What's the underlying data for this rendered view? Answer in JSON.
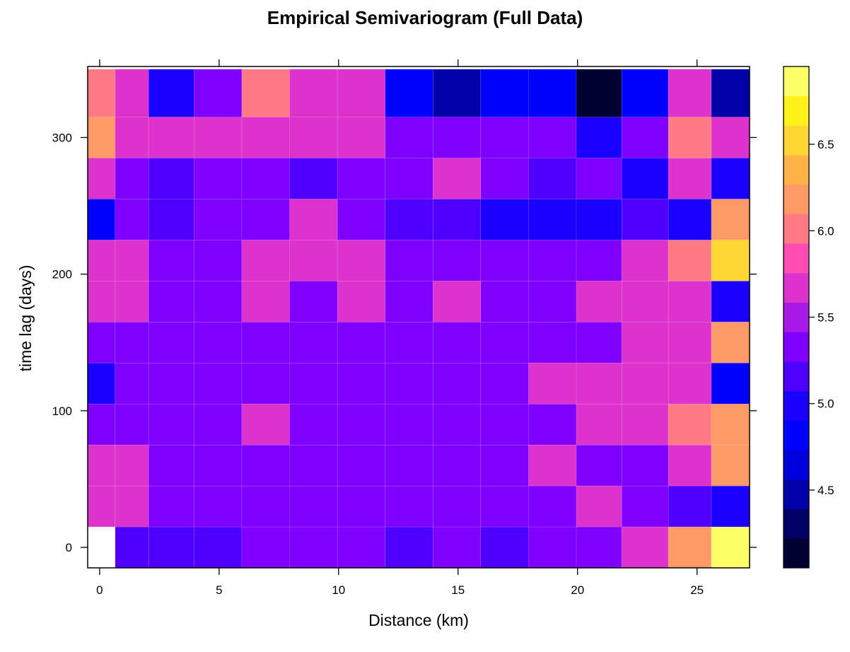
{
  "chart_data": {
    "type": "heatmap",
    "title": "Empirical Semivariogram (Full Data)",
    "xlabel": "Distance (km)",
    "ylabel": "time lag (days)",
    "xlim": [
      -0.5,
      27.2
    ],
    "ylim": [
      -15,
      352
    ],
    "x_ticks": [
      0,
      5,
      10,
      15,
      20,
      25
    ],
    "y_ticks": [
      0,
      100,
      200,
      300
    ],
    "colorbar": {
      "range": [
        4.05,
        6.95
      ],
      "ticks": [
        4.5,
        5.0,
        5.5,
        6.0,
        6.5
      ],
      "colors": [
        "#000033",
        "#000066",
        "#0000AA",
        "#0000DD",
        "#0000FF",
        "#1A00FF",
        "#4D00FF",
        "#8000FF",
        "#AA1AE6",
        "#DD33CC",
        "#FF4DB3",
        "#FF7A85",
        "#FF9966",
        "#FFB347",
        "#FFD633",
        "#FFF01A",
        "#FFFF66"
      ]
    },
    "x_bins": [
      -0.5,
      0.65,
      2.05,
      3.95,
      5.95,
      7.95,
      9.95,
      11.95,
      13.95,
      15.95,
      17.95,
      19.95,
      21.85,
      23.8,
      25.6,
      27.2
    ],
    "y_bins": [
      -15,
      15,
      45,
      75,
      105,
      135,
      165,
      195,
      225,
      255,
      285,
      315,
      350
    ],
    "values": [
      [
        null,
        5.2,
        5.2,
        5.2,
        5.4,
        5.4,
        5.4,
        5.1,
        5.4,
        5.2,
        5.4,
        5.4,
        5.6,
        6.2,
        6.95
      ],
      [
        5.6,
        5.6,
        5.4,
        5.4,
        5.4,
        5.4,
        5.4,
        5.4,
        5.4,
        5.4,
        5.4,
        5.6,
        5.4,
        5.2,
        5.0
      ],
      [
        5.75,
        5.6,
        5.4,
        5.4,
        5.4,
        5.4,
        5.4,
        5.4,
        5.4,
        5.4,
        5.6,
        5.4,
        5.4,
        5.6,
        6.1
      ],
      [
        5.4,
        5.4,
        5.4,
        5.4,
        5.6,
        5.4,
        5.4,
        5.4,
        5.4,
        5.4,
        5.4,
        5.6,
        5.6,
        6.0,
        6.1
      ],
      [
        5.0,
        5.4,
        5.4,
        5.4,
        5.4,
        5.4,
        5.4,
        5.4,
        5.4,
        5.4,
        5.6,
        5.6,
        5.75,
        5.75,
        4.9
      ],
      [
        5.4,
        5.4,
        5.4,
        5.4,
        5.4,
        5.4,
        5.4,
        5.4,
        5.4,
        5.4,
        5.4,
        5.4,
        5.6,
        5.75,
        6.1
      ],
      [
        5.6,
        5.6,
        5.4,
        5.4,
        5.6,
        5.4,
        5.6,
        5.4,
        5.6,
        5.4,
        5.4,
        5.6,
        5.6,
        5.6,
        5.0
      ],
      [
        5.6,
        5.6,
        5.4,
        5.4,
        5.6,
        5.6,
        5.6,
        5.4,
        5.4,
        5.4,
        5.4,
        5.4,
        5.75,
        6.0,
        6.6
      ],
      [
        4.75,
        5.4,
        5.2,
        5.4,
        5.4,
        5.6,
        5.4,
        5.2,
        5.2,
        5.0,
        5.0,
        5.0,
        5.2,
        5.0,
        6.2
      ],
      [
        5.6,
        5.4,
        5.2,
        5.4,
        5.4,
        5.1,
        5.4,
        5.4,
        5.6,
        5.4,
        5.2,
        5.4,
        5.0,
        5.6,
        5.0
      ],
      [
        6.1,
        5.75,
        5.6,
        5.6,
        5.6,
        5.75,
        5.75,
        5.4,
        5.4,
        5.4,
        5.4,
        5.0,
        5.4,
        6.0,
        5.6
      ],
      [
        6.0,
        5.75,
        5.0,
        5.4,
        6.0,
        5.6,
        5.75,
        4.9,
        4.4,
        4.75,
        4.75,
        4.1,
        4.9,
        5.75,
        4.4
      ]
    ]
  }
}
